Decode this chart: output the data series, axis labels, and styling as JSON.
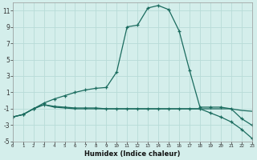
{
  "xlabel": "Humidex (Indice chaleur)",
  "background_color": "#d4eeeb",
  "grid_color": "#b8dbd7",
  "line_color": "#1a6b5e",
  "x_values": [
    0,
    1,
    2,
    3,
    4,
    5,
    6,
    7,
    8,
    9,
    10,
    11,
    12,
    13,
    14,
    15,
    16,
    17,
    18,
    19,
    20,
    21,
    22,
    23
  ],
  "line1_y": [
    -2.0,
    -1.7,
    -1.0,
    -0.3,
    0.2,
    0.6,
    1.0,
    1.3,
    1.5,
    1.6,
    3.5,
    9.0,
    9.2,
    11.3,
    11.6,
    11.1,
    8.5,
    3.7,
    -0.8,
    -0.8,
    -0.8,
    -1.0,
    -2.2,
    -3.0
  ],
  "line2_y": [
    -2.0,
    -1.7,
    -1.0,
    -0.5,
    -0.7,
    -0.8,
    -0.9,
    -0.9,
    -0.9,
    -1.0,
    -1.0,
    -1.0,
    -1.0,
    -1.0,
    -1.0,
    -1.0,
    -1.0,
    -1.0,
    -1.0,
    -1.5,
    -2.0,
    -2.6,
    -3.5,
    -4.6
  ],
  "line3_y": [
    -2.0,
    -1.7,
    -1.0,
    -0.5,
    -0.8,
    -0.9,
    -1.0,
    -1.0,
    -1.0,
    -1.0,
    -1.0,
    -1.0,
    -1.0,
    -1.0,
    -1.0,
    -1.0,
    -1.0,
    -1.0,
    -1.0,
    -1.0,
    -1.0,
    -1.0,
    -1.2,
    -1.3
  ],
  "ylim": [
    -5,
    12
  ],
  "xlim": [
    0,
    23
  ],
  "yticks": [
    -5,
    -3,
    -1,
    1,
    3,
    5,
    7,
    9,
    11
  ],
  "xticks": [
    0,
    1,
    2,
    3,
    4,
    5,
    6,
    7,
    8,
    9,
    10,
    11,
    12,
    13,
    14,
    15,
    16,
    17,
    18,
    19,
    20,
    21,
    22,
    23
  ]
}
